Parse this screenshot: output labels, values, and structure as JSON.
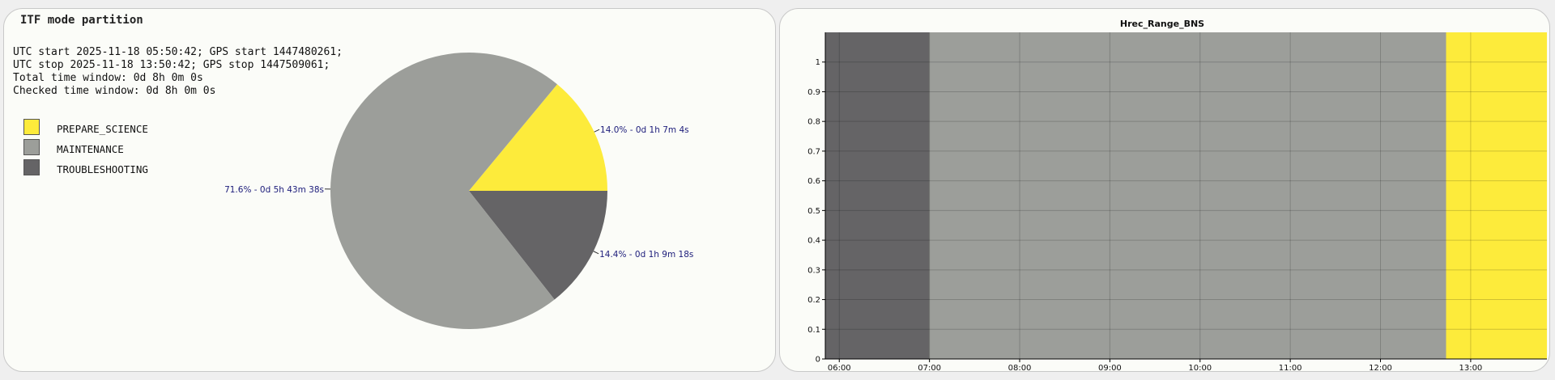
{
  "left_panel": {
    "title": "ITF mode partition",
    "info_lines": [
      "UTC start 2025-11-18 05:50:42; GPS start 1447480261;",
      "UTC stop 2025-11-18 13:50:42; GPS stop 1447509061;",
      "Total time window: 0d 8h 0m 0s",
      "Checked time window: 0d 8h 0m 0s"
    ],
    "legend": [
      {
        "label": "PREPARE_SCIENCE",
        "color": "#fdeb3b"
      },
      {
        "label": "MAINTENANCE",
        "color": "#9c9e9a"
      },
      {
        "label": "TROUBLESHOOTING",
        "color": "#656466"
      }
    ]
  },
  "right_panel": {
    "title": "Hrec_Range_BNS"
  },
  "chart_data": [
    {
      "type": "pie",
      "slices": [
        {
          "label": "PREPARE_SCIENCE",
          "percent": 14.0,
          "duration": "0d 1h 7m 4s",
          "text": "14.0% - 0d 1h 7m 4s",
          "color": "#fdeb3b"
        },
        {
          "label": "TROUBLESHOOTING",
          "percent": 14.4,
          "duration": "0d 1h 9m 18s",
          "text": "14.4% - 0d 1h 9m 18s",
          "color": "#656466"
        },
        {
          "label": "MAINTENANCE",
          "percent": 71.6,
          "duration": "0d 5h 43m 38s",
          "text": "71.6% - 0d 5h 43m 38s",
          "color": "#9c9e9a"
        }
      ],
      "label_color": "#1c1c7a"
    },
    {
      "type": "area",
      "title": "Hrec_Range_BNS",
      "x_range": [
        "05:50:42",
        "13:50:42"
      ],
      "ylim": [
        0,
        1.1
      ],
      "y_ticks": [
        "0",
        "0.1",
        "0.2",
        "0.3",
        "0.4",
        "0.5",
        "0.6",
        "0.7",
        "0.8",
        "0.9",
        "1"
      ],
      "x_ticks": [
        "06:00",
        "07:00",
        "08:00",
        "09:00",
        "10:00",
        "11:00",
        "12:00",
        "13:00"
      ],
      "grid": true,
      "segments": [
        {
          "mode": "TROUBLESHOOTING",
          "start": "05:50:42",
          "end": "07:00:00",
          "color": "#656466"
        },
        {
          "mode": "MAINTENANCE",
          "start": "07:00:00",
          "end": "12:43:38",
          "color": "#9c9e9a"
        },
        {
          "mode": "PREPARE_SCIENCE",
          "start": "12:43:38",
          "end": "13:50:42",
          "color": "#fdeb3b"
        }
      ]
    }
  ]
}
